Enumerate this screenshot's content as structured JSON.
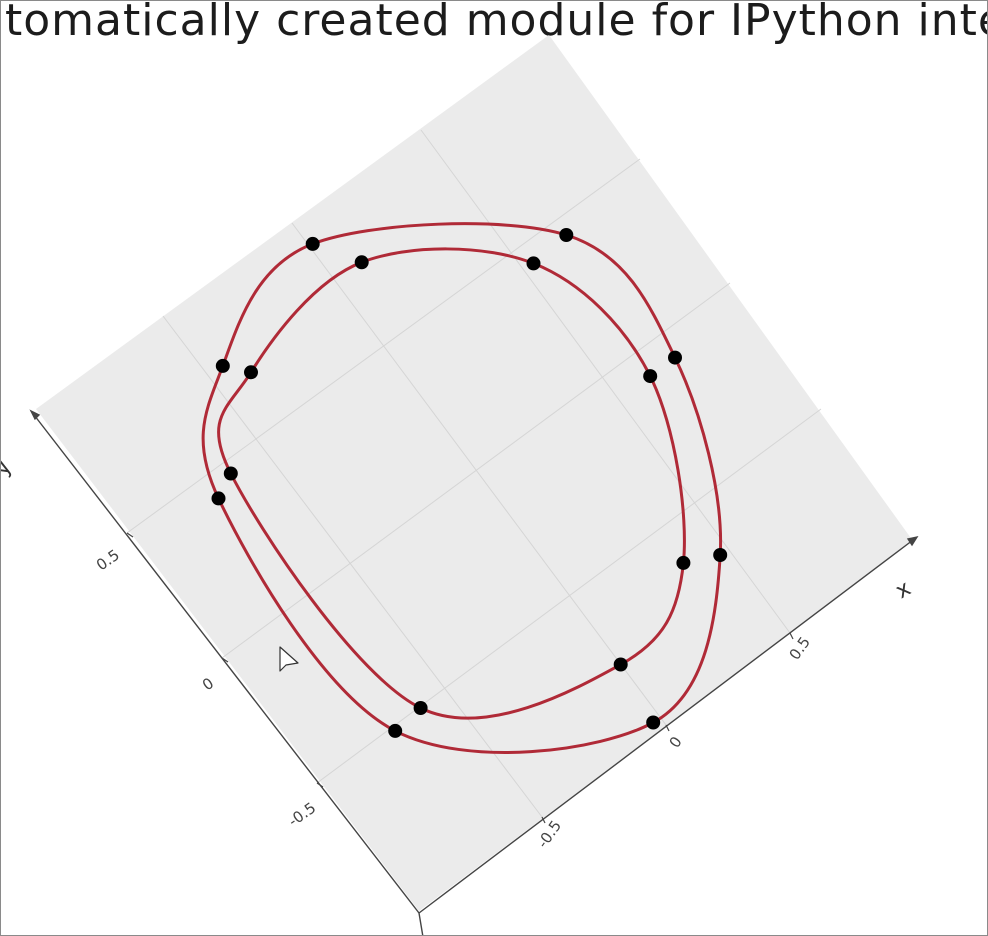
{
  "window": {
    "title": "tomatically created module for IPython inter"
  },
  "chart_data": {
    "type": "scatter",
    "title": "tomatically created module for IPython inter",
    "projection": "3d",
    "xlabel": "x",
    "ylabel": "y",
    "x_ticks": [
      "-0.5",
      "0",
      "0.5"
    ],
    "y_ticks": [
      "-0.5",
      "0",
      "0.5"
    ],
    "grid": true,
    "plane_color": "#ebebeb",
    "curve_color": "#b02a37",
    "marker_color": "#000000",
    "series": [
      {
        "curve": "closed",
        "points": [
          {
            "x": 0.03,
            "y": 0.93
          },
          {
            "x": 0.7,
            "y": 0.47
          },
          {
            "x": 0.74,
            "y": -0.05
          },
          {
            "x": 0.47,
            "y": -0.64
          },
          {
            "x": -0.03,
            "y": -0.94
          },
          {
            "x": -0.71,
            "y": -0.47
          },
          {
            "x": -0.71,
            "y": 0.46
          },
          {
            "x": -0.44,
            "y": 0.79
          }
        ]
      },
      {
        "curve": "closed",
        "points": [
          {
            "x": 0.12,
            "y": 0.79
          },
          {
            "x": 0.56,
            "y": 0.46
          },
          {
            "x": 0.64,
            "y": -0.05
          },
          {
            "x": 0.36,
            "y": -0.59
          },
          {
            "x": 0.0,
            "y": -0.73
          },
          {
            "x": -0.6,
            "y": -0.46
          },
          {
            "x": -0.63,
            "y": 0.5
          },
          {
            "x": -0.38,
            "y": 0.72
          }
        ]
      }
    ]
  }
}
